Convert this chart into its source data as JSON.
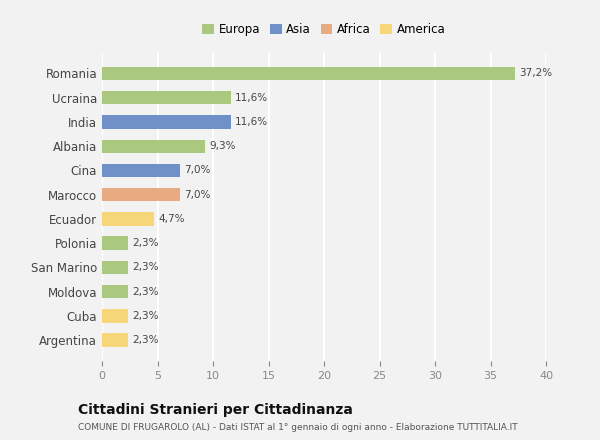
{
  "countries": [
    "Argentina",
    "Cuba",
    "Moldova",
    "San Marino",
    "Polonia",
    "Ecuador",
    "Marocco",
    "Cina",
    "Albania",
    "India",
    "Ucraina",
    "Romania"
  ],
  "values": [
    2.3,
    2.3,
    2.3,
    2.3,
    2.3,
    4.7,
    7.0,
    7.0,
    9.3,
    11.6,
    11.6,
    37.2
  ],
  "labels": [
    "2,3%",
    "2,3%",
    "2,3%",
    "2,3%",
    "2,3%",
    "4,7%",
    "7,0%",
    "7,0%",
    "9,3%",
    "11,6%",
    "11,6%",
    "37,2%"
  ],
  "colors": [
    "#f5d77a",
    "#f5d77a",
    "#aac97e",
    "#aac97e",
    "#aac97e",
    "#f5d77a",
    "#e8aa80",
    "#7090c8",
    "#aac97e",
    "#7090c8",
    "#aac97e",
    "#aac97e"
  ],
  "legend_labels": [
    "Europa",
    "Asia",
    "Africa",
    "America"
  ],
  "legend_colors": [
    "#aac97e",
    "#7090c8",
    "#e8aa80",
    "#f5d77a"
  ],
  "title": "Cittadini Stranieri per Cittadinanza",
  "subtitle": "COMUNE DI FRUGAROLO (AL) - Dati ISTAT al 1° gennaio di ogni anno - Elaborazione TUTTITALIA.IT",
  "xlim": [
    0,
    40
  ],
  "xticks": [
    0,
    5,
    10,
    15,
    20,
    25,
    30,
    35,
    40
  ],
  "background_color": "#f2f2f2",
  "grid_color": "#ffffff",
  "bar_height": 0.55
}
